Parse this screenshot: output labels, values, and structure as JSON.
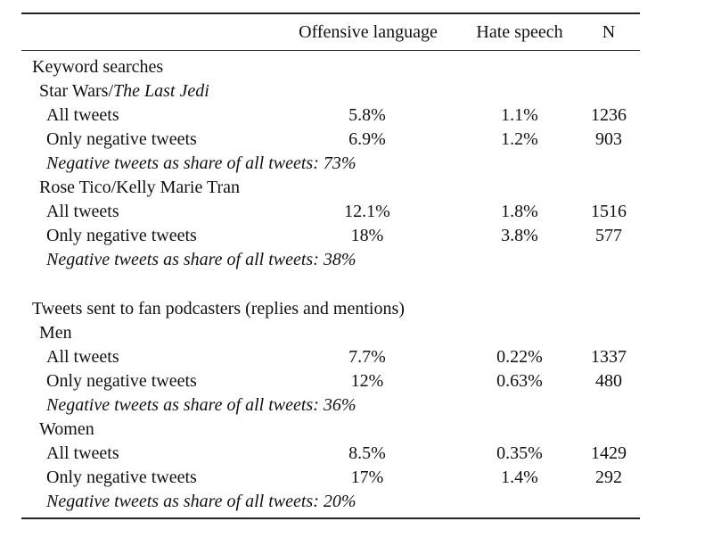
{
  "header": {
    "col_offensive": "Offensive language",
    "col_hate": "Hate speech",
    "col_n": "N"
  },
  "sections": [
    {
      "title": "Keyword searches",
      "groups": [
        {
          "name": "Star Wars/",
          "name_italic": "The Last Jedi",
          "rows": [
            {
              "label": "All tweets",
              "offensive": "5.8%",
              "hate": "1.1%",
              "n": "1236"
            },
            {
              "label": "Only negative tweets",
              "offensive": "6.9%",
              "hate": "1.2%",
              "n": "903"
            }
          ],
          "note": "Negative tweets as share of all tweets: 73%"
        },
        {
          "name": "Rose Tico/Kelly Marie Tran",
          "rows": [
            {
              "label": "All tweets",
              "offensive": "12.1%",
              "hate": "1.8%",
              "n": "1516"
            },
            {
              "label": "Only negative tweets",
              "offensive": "18%",
              "hate": "3.8%",
              "n": "577"
            }
          ],
          "note": "Negative tweets as share of all tweets: 38%"
        }
      ]
    },
    {
      "title": "Tweets sent to fan podcasters (replies and mentions)",
      "groups": [
        {
          "name": "Men",
          "rows": [
            {
              "label": "All tweets",
              "offensive": "7.7%",
              "hate": "0.22%",
              "n": "1337"
            },
            {
              "label": "Only negative tweets",
              "offensive": "12%",
              "hate": "0.63%",
              "n": "480"
            }
          ],
          "note": "Negative tweets as share of all tweets: 36%"
        },
        {
          "name": "Women",
          "rows": [
            {
              "label": "All tweets",
              "offensive": "8.5%",
              "hate": "0.35%",
              "n": "1429"
            },
            {
              "label": "Only negative tweets",
              "offensive": "17%",
              "hate": "1.4%",
              "n": "292"
            }
          ],
          "note": "Negative tweets as share of all tweets: 20%"
        }
      ]
    }
  ]
}
